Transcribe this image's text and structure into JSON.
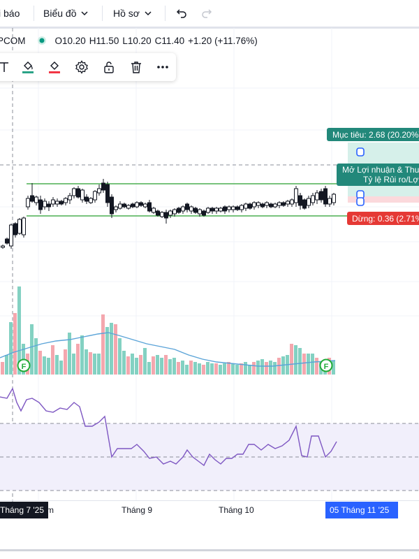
{
  "topbar": {
    "alerts_label": "i báo",
    "chart_label": "Biểu đồ",
    "profile_label": "Hồ sơ",
    "undo_icon": "undo-icon",
    "redo_icon": "redo-icon"
  },
  "legend": {
    "symbol": "PCOM",
    "open": "O10.20",
    "high": "H11.50",
    "low": "L10.20",
    "close": "C11.40",
    "change": "+1.20 (+11.76%)",
    "status_color": "#089981",
    "change_color": "#131722"
  },
  "toolbar": {
    "tools": [
      "text-tool-icon",
      "fill-color-icon",
      "line-color-icon",
      "settings-icon",
      "unlock-icon",
      "trash-icon",
      "more-icon"
    ]
  },
  "position": {
    "target_label": "Mục tiêu: 2.68 (20.20%)",
    "center_label_1": "Mở Lợi nhuận & Thu",
    "center_label_2": "Tỷ lệ Rủi ro/Lợ",
    "stop_label": "Dừng: 0.36 (2.71%)",
    "profit_color": "#089981",
    "loss_color": "#f23645"
  },
  "events": {
    "marker_label": "F"
  },
  "xaxis": {
    "badge_left": "Tháng 7 '25",
    "left_tail": "m",
    "month_9": "Tháng 9",
    "month_10": "Tháng 10",
    "badge_right": "05 Tháng 11 '25"
  },
  "chart_data": {
    "type": "candlestick",
    "indicators": [
      "volume",
      "moving-average",
      "oscillator"
    ],
    "x_ticks": [
      "Tháng 7 '25",
      "Tháng 9",
      "Tháng 10",
      "05 Tháng 11 '25"
    ],
    "price_range_note": "bars consolidate between support and resistance lines",
    "up_color": "#ffffff",
    "down_color": "#131722",
    "volume_up_color": "#83d1c2",
    "volume_down_color": "#f4a7ae",
    "ma_color": "#5ba4d8",
    "osc_color": "#7e57c2"
  }
}
